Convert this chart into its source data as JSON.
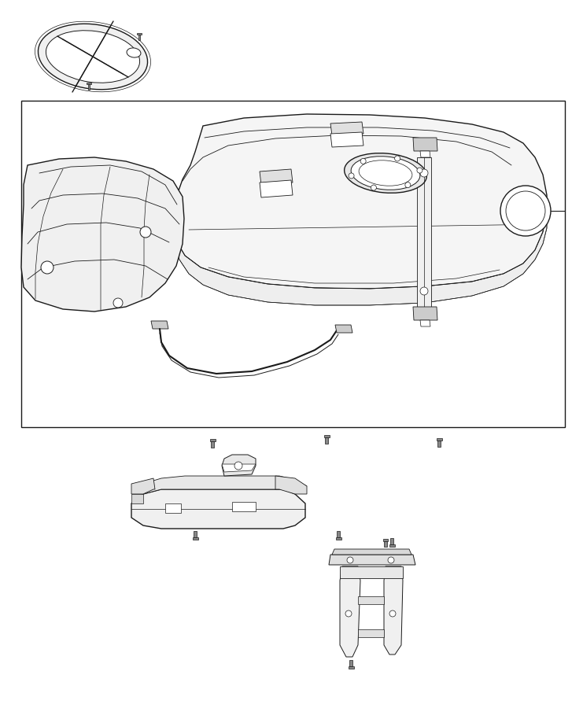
{
  "bg_color": "#ffffff",
  "lc": "#1a1a1a",
  "lw": 1.0,
  "fig_width": 7.41,
  "fig_height": 9.0,
  "dpi": 100
}
